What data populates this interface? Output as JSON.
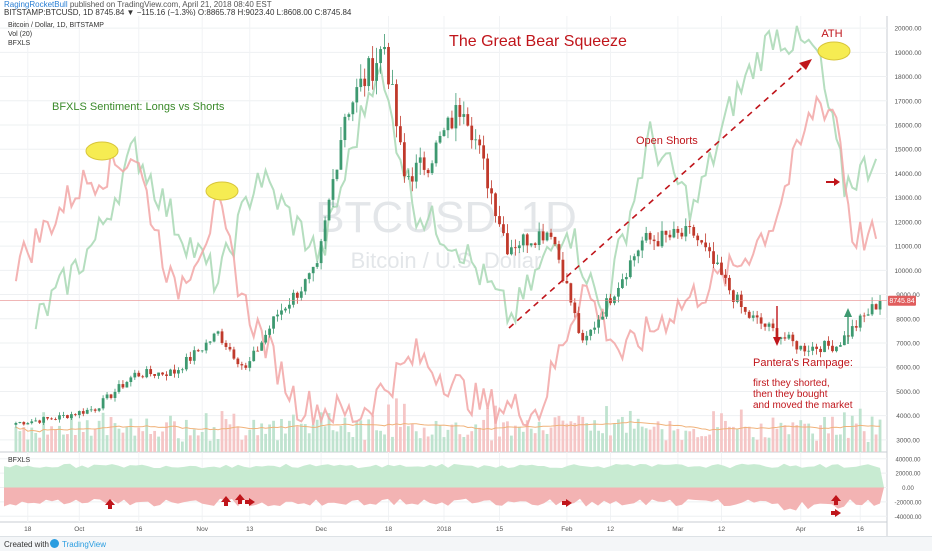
{
  "header": {
    "author": "RagingRocketBull",
    "published": "published on TradingView.com, April 21, 2018 08:40 EST",
    "ohlc_line": "BITSTAMP:BTCUSD, 1D 8745.84 ▼ −115.16 (−1.3%) O:8865.78 H:9023.40 L:8608.00 C:8745.84"
  },
  "legend": {
    "title": "Bitcoin / Dollar, 1D, BITSTAMP",
    "vol": "Vol (20)",
    "indicator": "BFXLS"
  },
  "watermark": {
    "symbol": "BTCUSD, 1D",
    "name": "Bitcoin / U.S. Dollar"
  },
  "annotations": {
    "title": "The Great Bear Squeeze",
    "sentiment": "BFXLS Sentiment: Longs vs Shorts",
    "open_shorts": "Open Shorts",
    "ath": "ATH",
    "pantera_1": "Pantera's Rampage:",
    "pantera_2": "first they shorted,",
    "pantera_3": "then they bought",
    "pantera_4": "and moved the market"
  },
  "price_badge": "8745.84",
  "sub_pane_label": "BFXLS",
  "footer": {
    "created_with": "Created with",
    "brand": "TradingView"
  },
  "colors": {
    "up": "#3d9970",
    "down": "#c0392b",
    "longs_line": "#a8d8b4",
    "shorts_line": "#f2a6a6",
    "annotation": "#c0151b",
    "sentiment_text": "#3a8a2a",
    "highlight_fill": "#f6ec52",
    "highlight_stroke": "#d8c53a"
  },
  "chart_data": [
    {
      "type": "candlestick",
      "series_label": "BITSTAMP:BTCUSD, 1D",
      "x_ticks": [
        "18",
        "Oct",
        "16",
        "Nov",
        "13",
        "Dec",
        "18",
        "2018",
        "15",
        "Feb",
        "12",
        "Mar",
        "12",
        "Apr",
        "16"
      ],
      "y_ticks": [
        3000,
        4000,
        5000,
        6000,
        7000,
        8000,
        9000,
        10000,
        11000,
        12000,
        13000,
        14000,
        15000,
        16000,
        17000,
        18000,
        19000,
        20000
      ],
      "ylim": [
        2500,
        20500
      ],
      "last_close": 8745.84,
      "anchor_closes": [
        [
          "2017-09-15",
          3700
        ],
        [
          "2017-09-25",
          3900
        ],
        [
          "2017-10-05",
          4300
        ],
        [
          "2017-10-15",
          5700
        ],
        [
          "2017-10-25",
          5800
        ],
        [
          "2017-11-05",
          7400
        ],
        [
          "2017-11-12",
          5900
        ],
        [
          "2017-11-20",
          8200
        ],
        [
          "2017-11-30",
          10000
        ],
        [
          "2017-12-07",
          16500
        ],
        [
          "2017-12-17",
          19300
        ],
        [
          "2017-12-22",
          13800
        ],
        [
          "2017-12-28",
          14500
        ],
        [
          "2018-01-06",
          17000
        ],
        [
          "2018-01-17",
          11000
        ],
        [
          "2018-01-28",
          11700
        ],
        [
          "2018-02-05",
          6900
        ],
        [
          "2018-02-20",
          11200
        ],
        [
          "2018-03-05",
          11500
        ],
        [
          "2018-03-18",
          8200
        ],
        [
          "2018-04-01",
          6800
        ],
        [
          "2018-04-10",
          6900
        ],
        [
          "2018-04-21",
          8746
        ]
      ]
    },
    {
      "type": "line",
      "name": "BFXLS",
      "note": "longs and shorts lines overlaid on price pane",
      "series": [
        {
          "name": "longs",
          "points": [
            [
              "2017-09-20",
              7800
            ],
            [
              "2017-10-05",
              11200
            ],
            [
              "2017-10-15",
              15000
            ],
            [
              "2017-10-25",
              12000
            ],
            [
              "2017-11-05",
              9500
            ],
            [
              "2017-11-15",
              14000
            ],
            [
              "2017-12-01",
              10500
            ],
            [
              "2017-12-15",
              18500
            ],
            [
              "2017-12-25",
              12500
            ],
            [
              "2018-01-05",
              11000
            ],
            [
              "2018-01-18",
              8000
            ],
            [
              "2018-02-01",
              12000
            ],
            [
              "2018-02-10",
              8200
            ],
            [
              "2018-02-22",
              15500
            ],
            [
              "2018-03-05",
              12500
            ],
            [
              "2018-03-15",
              17000
            ],
            [
              "2018-03-25",
              19800
            ],
            [
              "2018-04-05",
              19000
            ],
            [
              "2018-04-12",
              13500
            ],
            [
              "2018-04-20",
              14600
            ]
          ]
        },
        {
          "name": "shorts",
          "points": [
            [
              "2017-09-15",
              10200
            ],
            [
              "2017-10-01",
              13500
            ],
            [
              "2017-10-15",
              14800
            ],
            [
              "2017-10-25",
              9000
            ],
            [
              "2017-11-05",
              12500
            ],
            [
              "2017-11-12",
              8500
            ],
            [
              "2017-11-25",
              4500
            ],
            [
              "2017-12-10",
              4000
            ],
            [
              "2017-12-25",
              6500
            ],
            [
              "2018-01-10",
              4500
            ],
            [
              "2018-01-25",
              4200
            ],
            [
              "2018-02-05",
              9400
            ],
            [
              "2018-02-15",
              6500
            ],
            [
              "2018-03-01",
              8500
            ],
            [
              "2018-03-15",
              10000
            ],
            [
              "2018-03-25",
              12000
            ],
            [
              "2018-04-05",
              17000
            ],
            [
              "2018-04-10",
              16500
            ],
            [
              "2018-04-14",
              11500
            ],
            [
              "2018-04-20",
              11300
            ]
          ]
        }
      ]
    },
    {
      "type": "area",
      "name": "BFXLS",
      "y_ticks": [
        40000,
        20000,
        0,
        -20000,
        -40000
      ],
      "ylim": [
        -48000,
        48000
      ],
      "series": [
        {
          "name": "longs",
          "level": 30000
        },
        {
          "name": "shorts",
          "level": -22000
        }
      ]
    }
  ]
}
